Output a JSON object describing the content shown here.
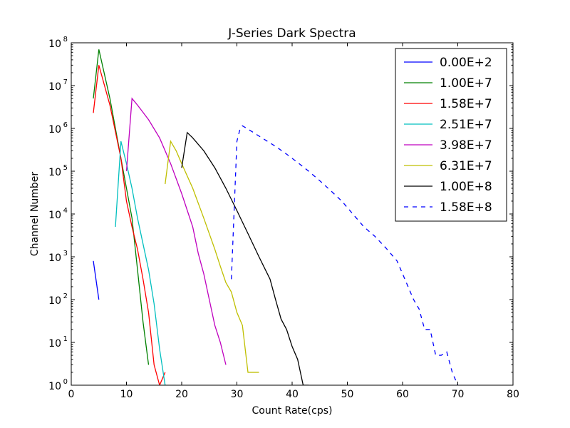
{
  "chart_data": {
    "type": "line",
    "title": "J-Series Dark Spectra",
    "xlabel": "Count Rate(cps)",
    "ylabel": "Channel Number",
    "xlim": [
      0,
      80
    ],
    "ylim": [
      1,
      100000000
    ],
    "yscale": "log",
    "grid": false,
    "legend_position": "top-right",
    "x_ticks": [
      0,
      10,
      20,
      30,
      40,
      50,
      60,
      70,
      80
    ],
    "x_tick_labels": [
      "0",
      "10",
      "20",
      "30",
      "40",
      "50",
      "60",
      "70",
      "80"
    ],
    "y_ticks": [
      1,
      10,
      100,
      1000,
      10000,
      100000,
      1000000,
      10000000,
      100000000
    ],
    "y_tick_exponents": [
      "0",
      "1",
      "2",
      "3",
      "4",
      "5",
      "6",
      "7",
      "8"
    ],
    "y_tick_base": "10",
    "series": [
      {
        "name": "0.00E+2",
        "color": "#0000ff",
        "dash": "solid",
        "x": [
          4,
          5
        ],
        "y": [
          800,
          100
        ]
      },
      {
        "name": "1.00E+7",
        "color": "#008000",
        "dash": "solid",
        "x": [
          4,
          5,
          7,
          9,
          11,
          12,
          13,
          14
        ],
        "y": [
          5000000,
          70000000,
          5000000,
          200000,
          8000,
          500,
          30,
          3
        ]
      },
      {
        "name": "1.58E+7",
        "color": "#ff0000",
        "dash": "solid",
        "x": [
          4,
          5,
          7,
          9,
          10,
          11,
          12,
          13,
          14,
          15,
          16,
          17
        ],
        "y": [
          2300000,
          30000000,
          3500000,
          200000,
          20000,
          5000,
          1500,
          300,
          50,
          3,
          1,
          2
        ]
      },
      {
        "name": "2.51E+7",
        "color": "#00bfbf",
        "dash": "solid",
        "x": [
          8,
          9,
          10,
          11,
          12,
          13,
          14,
          15,
          16,
          17
        ],
        "y": [
          5000,
          500000,
          150000,
          40000,
          8000,
          2000,
          500,
          80,
          7,
          1
        ]
      },
      {
        "name": "3.98E+7",
        "color": "#bf00bf",
        "dash": "solid",
        "x": [
          10,
          11,
          12,
          14,
          16,
          18,
          20,
          22,
          23,
          24,
          25,
          26,
          27,
          28
        ],
        "y": [
          100000,
          5000000,
          3500000,
          1600000,
          600000,
          150000,
          30000,
          5000,
          1200,
          400,
          100,
          25,
          10,
          3
        ]
      },
      {
        "name": "6.31E+7",
        "color": "#bfbf00",
        "dash": "solid",
        "x": [
          17,
          18,
          19,
          20,
          22,
          24,
          26,
          27,
          28,
          29,
          30,
          31,
          32,
          33,
          34
        ],
        "y": [
          50000,
          500000,
          300000,
          150000,
          40000,
          8000,
          1500,
          600,
          250,
          150,
          50,
          25,
          2,
          2,
          2
        ]
      },
      {
        "name": "1.00E+8",
        "color": "#000000",
        "dash": "solid",
        "x": [
          20,
          21,
          22,
          24,
          26,
          28,
          30,
          32,
          34,
          36,
          37,
          38,
          39,
          40,
          41,
          42,
          43
        ],
        "y": [
          120000,
          800000,
          600000,
          300000,
          120000,
          40000,
          12000,
          3500,
          1000,
          300,
          100,
          35,
          20,
          8,
          4,
          1,
          1
        ]
      },
      {
        "name": "1.58E+8",
        "color": "#0000ff",
        "dash": "dashed",
        "x": [
          29,
          30,
          30.5,
          31,
          33,
          35,
          37,
          39,
          41,
          43,
          45,
          47,
          49,
          51,
          53,
          55,
          57,
          59,
          60,
          61,
          62,
          63,
          64,
          65,
          66,
          67,
          68,
          69,
          70
        ],
        "y": [
          300,
          500000,
          900000,
          1150000,
          800000,
          550000,
          380000,
          250000,
          160000,
          100000,
          60000,
          35000,
          20000,
          10000,
          5000,
          3000,
          1600,
          800,
          400,
          200,
          100,
          60,
          20,
          20,
          5,
          5,
          6,
          2,
          1
        ]
      }
    ]
  }
}
